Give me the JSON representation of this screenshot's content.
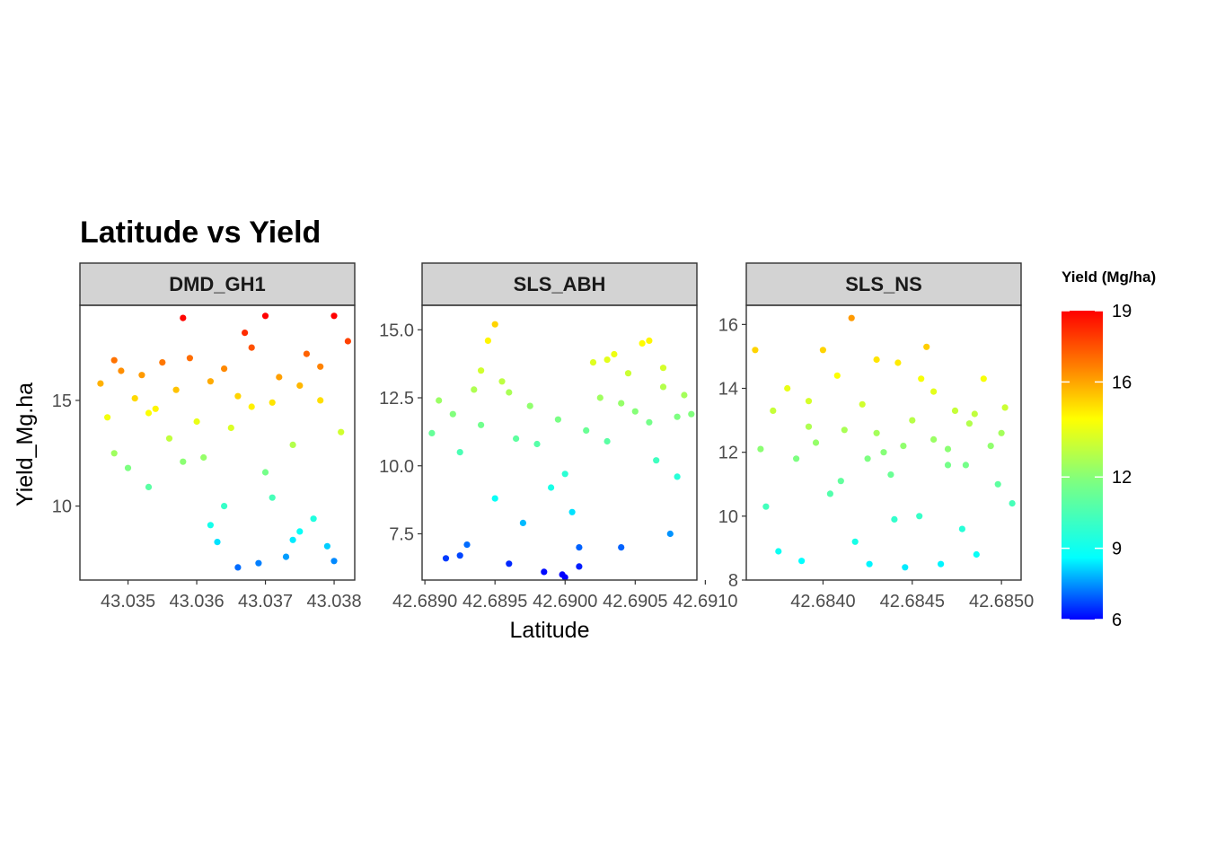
{
  "chart_data": {
    "type": "scatter",
    "title": "Latitude vs Yield",
    "xlabel": "Latitude",
    "ylabel": "Yield_Mg.ha",
    "legend": {
      "title": "Yield (Mg/ha)",
      "placement": "right",
      "range": [
        6,
        19
      ],
      "ticks": [
        6,
        9,
        12,
        16,
        19
      ],
      "colors": [
        "#0000ff",
        "#00ffff",
        "#7fff7f",
        "#ffff00",
        "#ff7f00",
        "#ff0000"
      ]
    },
    "panels": [
      {
        "name": "DMD_GH1",
        "xlim": [
          43.0343,
          43.0383
        ],
        "ylim": [
          6.5,
          19.5
        ],
        "xticks": [
          43.035,
          43.036,
          43.037,
          43.038
        ],
        "xtick_labels": [
          "43.035",
          "43.036",
          "43.037",
          "43.038"
        ],
        "yticks": [
          10,
          15
        ],
        "ytick_labels": [
          "10",
          "15"
        ],
        "points": [
          [
            43.0346,
            15.8
          ],
          [
            43.0347,
            14.2
          ],
          [
            43.0348,
            12.5
          ],
          [
            43.0349,
            16.4
          ],
          [
            43.035,
            11.8
          ],
          [
            43.0351,
            15.1
          ],
          [
            43.0352,
            16.2
          ],
          [
            43.0353,
            10.9
          ],
          [
            43.0354,
            14.6
          ],
          [
            43.0355,
            16.8
          ],
          [
            43.0356,
            13.2
          ],
          [
            43.0357,
            15.5
          ],
          [
            43.0358,
            18.9
          ],
          [
            43.0359,
            17.0
          ],
          [
            43.036,
            14.0
          ],
          [
            43.0361,
            12.3
          ],
          [
            43.0362,
            15.9
          ],
          [
            43.0363,
            8.3
          ],
          [
            43.0364,
            16.5
          ],
          [
            43.0365,
            13.7
          ],
          [
            43.0366,
            15.2
          ],
          [
            43.0367,
            18.2
          ],
          [
            43.0368,
            17.5
          ],
          [
            43.0369,
            7.3
          ],
          [
            43.037,
            11.6
          ],
          [
            43.0371,
            14.9
          ],
          [
            43.0372,
            16.1
          ],
          [
            43.0373,
            7.6
          ],
          [
            43.0374,
            12.9
          ],
          [
            43.0375,
            15.7
          ],
          [
            43.0376,
            17.2
          ],
          [
            43.0377,
            9.4
          ],
          [
            43.0378,
            16.6
          ],
          [
            43.0379,
            8.1
          ],
          [
            43.038,
            7.4
          ],
          [
            43.0381,
            13.5
          ],
          [
            43.0382,
            17.8
          ],
          [
            43.0353,
            14.4
          ],
          [
            43.0362,
            9.1
          ],
          [
            43.0371,
            10.4
          ],
          [
            43.0366,
            7.1
          ],
          [
            43.0375,
            8.8
          ],
          [
            43.038,
            19.0
          ],
          [
            43.037,
            19.0
          ],
          [
            43.0378,
            15.0
          ],
          [
            43.0348,
            16.9
          ],
          [
            43.0358,
            12.1
          ],
          [
            43.0368,
            14.7
          ],
          [
            43.0374,
            8.4
          ],
          [
            43.0364,
            10.0
          ]
        ]
      },
      {
        "name": "SLS_ABH",
        "xlim": [
          42.68898,
          42.69094
        ],
        "ylim": [
          5.8,
          15.9
        ],
        "xticks": [
          42.689,
          42.6895,
          42.69,
          42.6905,
          42.691
        ],
        "xtick_labels": [
          "42.6890",
          "42.6895",
          "42.6900",
          "42.6905",
          "42.6910"
        ],
        "yticks": [
          7.5,
          10.0,
          12.5,
          15.0
        ],
        "ytick_labels": [
          "7.5",
          "10.0",
          "12.5",
          "15.0"
        ],
        "points": [
          [
            42.68905,
            11.2
          ],
          [
            42.6891,
            12.4
          ],
          [
            42.68915,
            6.6
          ],
          [
            42.6892,
            11.9
          ],
          [
            42.68925,
            10.5
          ],
          [
            42.6893,
            7.1
          ],
          [
            42.68935,
            12.8
          ],
          [
            42.6894,
            11.5
          ],
          [
            42.68945,
            14.6
          ],
          [
            42.6895,
            15.2
          ],
          [
            42.68955,
            13.1
          ],
          [
            42.6896,
            6.4
          ],
          [
            42.68965,
            11.0
          ],
          [
            42.6897,
            7.9
          ],
          [
            42.68975,
            12.2
          ],
          [
            42.6898,
            10.8
          ],
          [
            42.68985,
            6.1
          ],
          [
            42.6899,
            9.2
          ],
          [
            42.68995,
            11.7
          ],
          [
            42.69,
            5.9
          ],
          [
            42.69005,
            8.3
          ],
          [
            42.6901,
            7.0
          ],
          [
            42.69015,
            11.3
          ],
          [
            42.6902,
            13.8
          ],
          [
            42.69025,
            12.5
          ],
          [
            42.6903,
            10.9
          ],
          [
            42.69035,
            14.1
          ],
          [
            42.6904,
            7.0
          ],
          [
            42.69045,
            13.4
          ],
          [
            42.6905,
            12.0
          ],
          [
            42.69055,
            14.5
          ],
          [
            42.6906,
            11.6
          ],
          [
            42.69065,
            10.2
          ],
          [
            42.6907,
            12.9
          ],
          [
            42.69075,
            7.5
          ],
          [
            42.6908,
            11.8
          ],
          [
            42.69085,
            12.6
          ],
          [
            42.6895,
            8.8
          ],
          [
            42.6896,
            12.7
          ],
          [
            42.69,
            9.7
          ],
          [
            42.6901,
            6.3
          ],
          [
            42.68998,
            6.0
          ],
          [
            42.6903,
            13.9
          ],
          [
            42.6907,
            13.6
          ],
          [
            42.6908,
            9.6
          ],
          [
            42.68925,
            6.7
          ],
          [
            42.6894,
            13.5
          ],
          [
            42.6904,
            12.3
          ],
          [
            42.6906,
            14.6
          ],
          [
            42.6909,
            11.9
          ]
        ]
      },
      {
        "name": "SLS_NS",
        "xlim": [
          42.68357,
          42.68511
        ],
        "ylim": [
          8.0,
          16.6
        ],
        "xticks": [
          42.684,
          42.6845,
          42.685
        ],
        "xtick_labels": [
          "42.6840",
          "42.6845",
          "42.6850"
        ],
        "yticks": [
          8,
          10,
          12,
          14,
          16
        ],
        "ytick_labels": [
          "8",
          "10",
          "12",
          "14",
          "16"
        ],
        "points": [
          [
            42.68362,
            15.2
          ],
          [
            42.68365,
            12.1
          ],
          [
            42.68368,
            10.3
          ],
          [
            42.68372,
            13.3
          ],
          [
            42.68375,
            8.9
          ],
          [
            42.6838,
            14.0
          ],
          [
            42.68385,
            11.8
          ],
          [
            42.68388,
            8.6
          ],
          [
            42.68392,
            13.6
          ],
          [
            42.68396,
            12.3
          ],
          [
            42.684,
            15.2
          ],
          [
            42.68404,
            10.7
          ],
          [
            42.68408,
            14.4
          ],
          [
            42.68412,
            12.7
          ],
          [
            42.68416,
            16.2
          ],
          [
            42.68418,
            9.2
          ],
          [
            42.68422,
            13.5
          ],
          [
            42.68426,
            8.5
          ],
          [
            42.6843,
            14.9
          ],
          [
            42.68434,
            12.0
          ],
          [
            42.68438,
            11.3
          ],
          [
            42.68442,
            14.8
          ],
          [
            42.68446,
            8.4
          ],
          [
            42.6845,
            13.0
          ],
          [
            42.68454,
            10.0
          ],
          [
            42.68458,
            15.3
          ],
          [
            42.68462,
            12.4
          ],
          [
            42.68466,
            8.5
          ],
          [
            42.6847,
            11.6
          ],
          [
            42.68474,
            13.3
          ],
          [
            42.68478,
            9.6
          ],
          [
            42.68482,
            12.9
          ],
          [
            42.68486,
            8.8
          ],
          [
            42.6849,
            14.3
          ],
          [
            42.68494,
            12.2
          ],
          [
            42.68498,
            11.0
          ],
          [
            42.68502,
            13.4
          ],
          [
            42.68506,
            10.4
          ],
          [
            42.6843,
            12.6
          ],
          [
            42.68455,
            14.3
          ],
          [
            42.6847,
            12.1
          ],
          [
            42.6841,
            11.1
          ],
          [
            42.6844,
            9.9
          ],
          [
            42.6848,
            11.6
          ],
          [
            42.68392,
            12.8
          ],
          [
            42.68462,
            13.9
          ],
          [
            42.68425,
            11.8
          ],
          [
            42.68445,
            12.2
          ],
          [
            42.68485,
            13.2
          ],
          [
            42.685,
            12.6
          ]
        ]
      }
    ]
  }
}
